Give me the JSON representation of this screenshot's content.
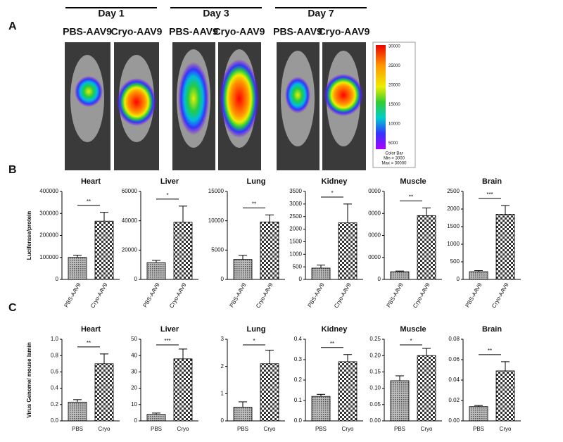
{
  "panel_labels": [
    "A",
    "B",
    "C"
  ],
  "panel_a": {
    "days": [
      "Day 1",
      "Day 3",
      "Day 7"
    ],
    "samples": [
      "PBS-AAV9",
      "Cryo-AAV9"
    ],
    "colorbar": {
      "ticks": [
        30000,
        25000,
        20000,
        15000,
        10000,
        5000
      ],
      "title": "Color Bar",
      "min_label": "Min = 3000",
      "max_label": "Max = 30000"
    }
  },
  "chart_data": [
    {
      "type": "bar",
      "title": "Heart",
      "ylabel": "Luciferase/protein",
      "categories": [
        "PBS-AAV9",
        "Cryo-AAV9"
      ],
      "values": [
        100000,
        265000
      ],
      "errors": [
        10000,
        40000
      ],
      "ylim": [
        0,
        400000
      ],
      "yticks": [
        0,
        100000,
        200000,
        300000,
        400000
      ],
      "annotation": "**"
    },
    {
      "type": "bar",
      "title": "Liver",
      "categories": [
        "PBS-AAV9",
        "Cryo-AAV9"
      ],
      "values": [
        11500,
        39000
      ],
      "errors": [
        1500,
        11000
      ],
      "ylim": [
        0,
        60000
      ],
      "yticks": [
        0,
        20000,
        40000,
        60000
      ],
      "annotation": "*"
    },
    {
      "type": "bar",
      "title": "Lung",
      "categories": [
        "PBS-AAV9",
        "Cryo-AAV9"
      ],
      "values": [
        3400,
        9800
      ],
      "errors": [
        700,
        1200
      ],
      "ylim": [
        0,
        15000
      ],
      "yticks": [
        0,
        5000,
        10000,
        15000
      ],
      "annotation": "**"
    },
    {
      "type": "bar",
      "title": "Kidney",
      "categories": [
        "PBS-AAV9",
        "Cryo-AAV9"
      ],
      "values": [
        450,
        2250
      ],
      "errors": [
        120,
        750
      ],
      "ylim": [
        0,
        3500
      ],
      "yticks": [
        0,
        500,
        1000,
        1500,
        2000,
        2500,
        3000,
        3500
      ],
      "annotation": "*"
    },
    {
      "type": "bar",
      "title": "Muscle",
      "categories": [
        "PBS-AAV9",
        "Cryo-AAV9"
      ],
      "values": [
        3500,
        29000
      ],
      "errors": [
        300,
        3500
      ],
      "ylim": [
        0,
        40000
      ],
      "yticks": [
        0,
        {
          "value": 10000,
          "label": "0000"
        },
        {
          "value": 20000,
          "label": "0000"
        },
        {
          "value": 30000,
          "label": "0000"
        },
        {
          "value": 40000,
          "label": "0000"
        }
      ],
      "annotation": "**"
    },
    {
      "type": "bar",
      "title": "Brain",
      "categories": [
        "PBS-AAV9",
        "Cryo-AAV9"
      ],
      "values": [
        220,
        1850
      ],
      "errors": [
        30,
        250
      ],
      "ylim": [
        0,
        2500
      ],
      "yticks": [
        0,
        500,
        1000,
        1500,
        2000,
        2500
      ],
      "annotation": "***"
    },
    {
      "type": "bar",
      "title": "Heart",
      "ylabel": "Virus Genome/ mouse lamin",
      "categories": [
        "PBS",
        "Cryo"
      ],
      "values": [
        0.23,
        0.7
      ],
      "errors": [
        0.03,
        0.12
      ],
      "ylim": [
        0,
        1.0
      ],
      "yticks": [
        {
          "value": 0,
          "label": "0.0"
        },
        0.2,
        0.4,
        0.6,
        0.8,
        {
          "value": 1.0,
          "label": "1.0"
        }
      ],
      "annotation": "**"
    },
    {
      "type": "bar",
      "title": "Liver",
      "categories": [
        "PBS",
        "Cryo"
      ],
      "values": [
        4,
        38
      ],
      "errors": [
        0.8,
        6
      ],
      "ylim": [
        0,
        50
      ],
      "yticks": [
        0,
        10,
        20,
        30,
        40,
        50
      ],
      "annotation": "***"
    },
    {
      "type": "bar",
      "title": "Lung",
      "categories": [
        "PBS",
        "Cryo"
      ],
      "values": [
        0.5,
        2.1
      ],
      "errors": [
        0.2,
        0.5
      ],
      "ylim": [
        0,
        3
      ],
      "yticks": [
        0,
        1,
        2,
        3
      ],
      "annotation": "*"
    },
    {
      "type": "bar",
      "title": "Kidney",
      "categories": [
        "PBS",
        "Cryo"
      ],
      "values": [
        0.12,
        0.29
      ],
      "errors": [
        0.01,
        0.035
      ],
      "ylim": [
        0,
        0.4
      ],
      "yticks": [
        {
          "value": 0,
          "label": "0.0"
        },
        0.1,
        0.2,
        0.3,
        0.4
      ],
      "annotation": "**"
    },
    {
      "type": "bar",
      "title": "Muscle",
      "categories": [
        "PBS",
        "Cryo"
      ],
      "values": [
        0.123,
        0.2
      ],
      "errors": [
        0.015,
        0.022
      ],
      "ylim": [
        0,
        0.25
      ],
      "yticks": [
        {
          "value": 0,
          "label": "0.00"
        },
        0.05,
        {
          "value": 0.1,
          "label": "0.10"
        },
        0.15,
        {
          "value": 0.2,
          "label": "0.20"
        },
        0.25
      ],
      "annotation": "*"
    },
    {
      "type": "bar",
      "title": "Brain",
      "categories": [
        "PBS",
        "Cryo"
      ],
      "values": [
        0.014,
        0.049
      ],
      "errors": [
        0.001,
        0.009
      ],
      "ylim": [
        0,
        0.08
      ],
      "yticks": [
        {
          "value": 0,
          "label": "0.00"
        },
        0.02,
        0.04,
        0.06,
        0.08
      ],
      "annotation": "**"
    }
  ]
}
